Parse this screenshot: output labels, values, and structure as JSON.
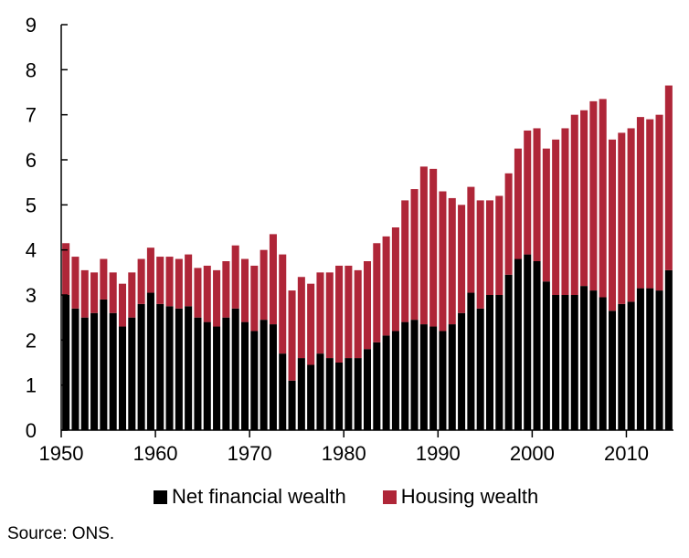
{
  "colors": {
    "net": "#000000",
    "housing": "#AF2638",
    "axis": "#000000"
  },
  "legend": {
    "net_label": "Net financial wealth",
    "housing_label": "Housing wealth"
  },
  "source": "Source: ONS.",
  "chart_data": {
    "type": "bar",
    "stacked": true,
    "title": "",
    "xlabel": "",
    "ylabel": "",
    "ylim": [
      0,
      9
    ],
    "yticks": [
      "0",
      "1",
      "2",
      "3",
      "4",
      "5",
      "6",
      "7",
      "8",
      "9"
    ],
    "xticks": [
      "1950",
      "1960",
      "1970",
      "1980",
      "1990",
      "2000",
      "2010"
    ],
    "legend_position": "bottom",
    "grid": false,
    "categories": [
      1950,
      1951,
      1952,
      1953,
      1954,
      1955,
      1956,
      1957,
      1958,
      1959,
      1960,
      1961,
      1962,
      1963,
      1964,
      1965,
      1966,
      1967,
      1968,
      1969,
      1970,
      1971,
      1972,
      1973,
      1974,
      1975,
      1976,
      1977,
      1978,
      1979,
      1980,
      1981,
      1982,
      1983,
      1984,
      1985,
      1986,
      1987,
      1988,
      1989,
      1990,
      1991,
      1992,
      1993,
      1994,
      1995,
      1996,
      1997,
      1998,
      1999,
      2000,
      2001,
      2002,
      2003,
      2004,
      2005,
      2006,
      2007,
      2008,
      2009,
      2010,
      2011,
      2012,
      2013,
      2014
    ],
    "series": [
      {
        "name": "Net financial wealth",
        "color": "#000000",
        "values": [
          3.0,
          2.7,
          2.5,
          2.6,
          2.9,
          2.6,
          2.3,
          2.5,
          2.8,
          3.05,
          2.8,
          2.75,
          2.7,
          2.75,
          2.5,
          2.4,
          2.3,
          2.5,
          2.7,
          2.4,
          2.2,
          2.45,
          2.35,
          1.7,
          1.1,
          1.6,
          1.45,
          1.7,
          1.6,
          1.5,
          1.6,
          1.6,
          1.8,
          1.95,
          2.1,
          2.2,
          2.4,
          2.45,
          2.35,
          2.3,
          2.2,
          2.35,
          2.6,
          3.05,
          2.7,
          3.0,
          3.0,
          3.45,
          3.8,
          3.9,
          3.75,
          3.3,
          3.0,
          3.0,
          3.0,
          3.2,
          3.1,
          2.95,
          2.65,
          2.8,
          2.85,
          3.15,
          3.15,
          3.1,
          3.55
        ]
      },
      {
        "name": "Housing wealth",
        "color": "#AF2638",
        "values": [
          1.15,
          1.15,
          1.05,
          0.9,
          0.9,
          0.9,
          0.95,
          1.0,
          1.0,
          1.0,
          1.05,
          1.1,
          1.1,
          1.15,
          1.1,
          1.25,
          1.25,
          1.25,
          1.4,
          1.4,
          1.45,
          1.55,
          2.0,
          2.2,
          2.0,
          1.8,
          1.8,
          1.8,
          1.9,
          2.15,
          2.05,
          1.95,
          1.95,
          2.2,
          2.2,
          2.3,
          2.7,
          2.9,
          3.5,
          3.5,
          3.1,
          2.8,
          2.4,
          2.35,
          2.4,
          2.1,
          2.2,
          2.25,
          2.45,
          2.75,
          2.95,
          2.95,
          3.45,
          3.7,
          4.0,
          3.9,
          4.2,
          4.4,
          3.8,
          3.8,
          3.85,
          3.8,
          3.75,
          3.9,
          4.1
        ]
      }
    ]
  }
}
